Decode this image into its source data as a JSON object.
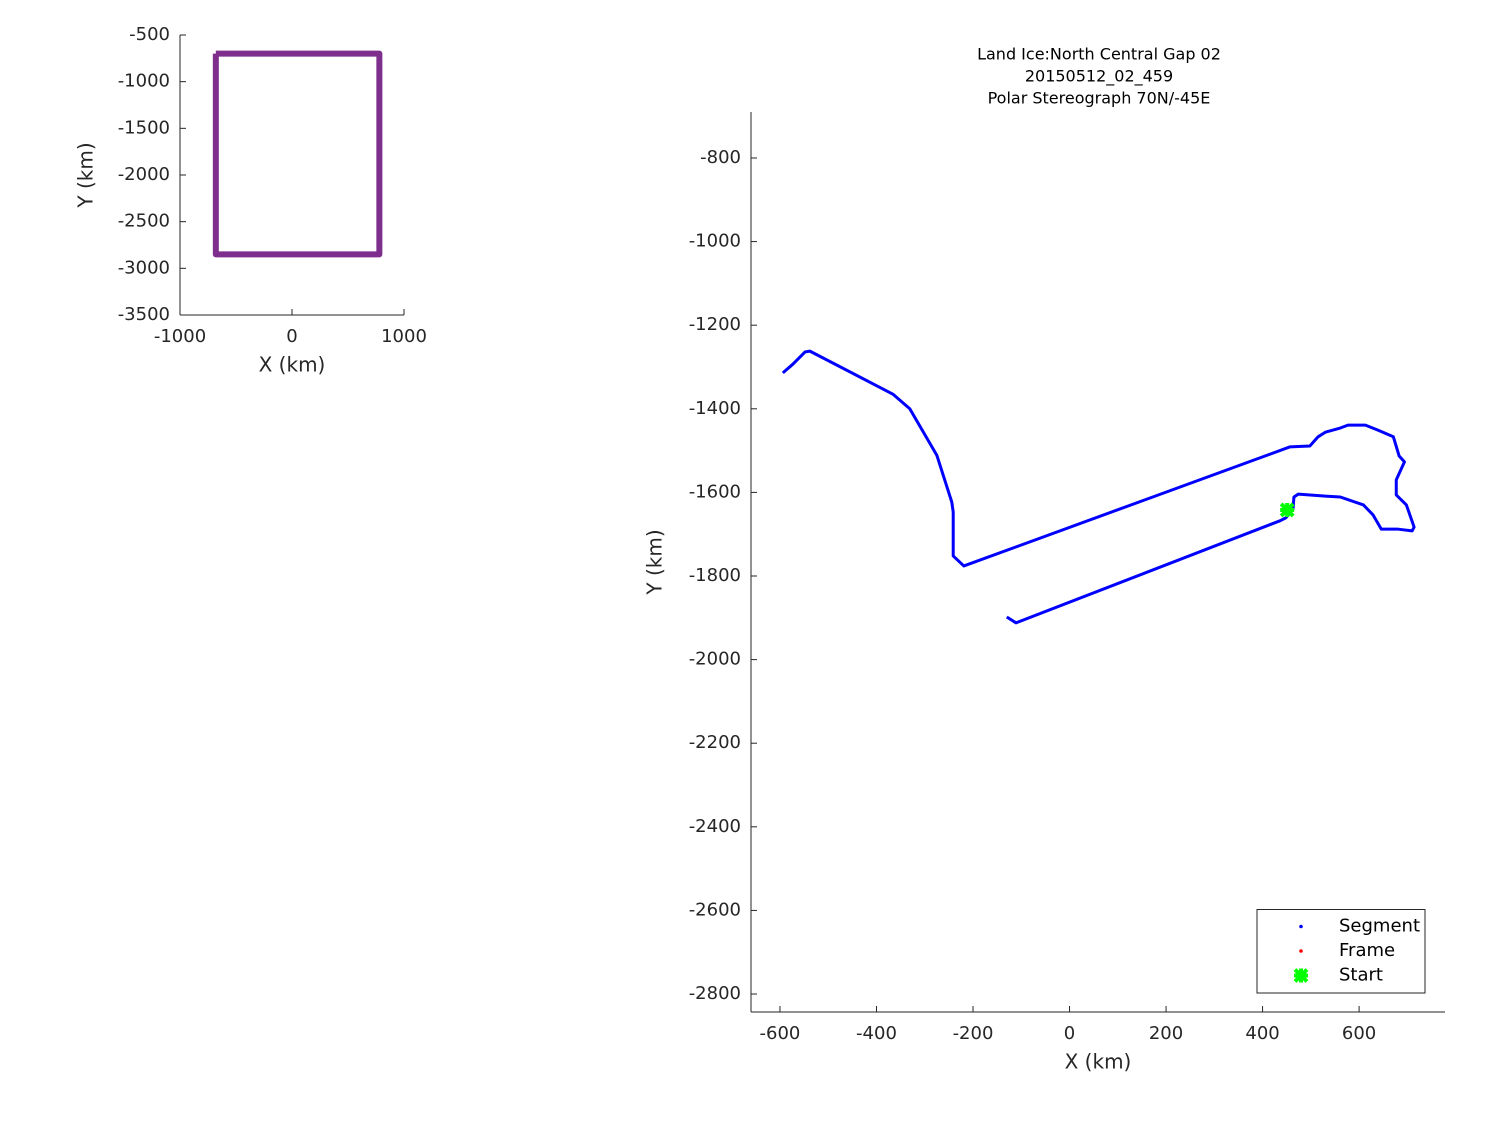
{
  "chart_data": [
    {
      "type": "line",
      "xlabel": "X (km)",
      "ylabel": "Y (km)",
      "xlim": [
        -1000,
        1000
      ],
      "ylim": [
        -3500,
        -500
      ],
      "xticks": [
        -1000,
        0,
        1000
      ],
      "yticks": [
        -3500,
        -3000,
        -2500,
        -2000,
        -1500,
        -1000,
        -500
      ],
      "series": [
        {
          "color": "#7e2f8e",
          "x": [
            -680,
            780,
            780,
            -680,
            -680
          ],
          "y": [
            -700,
            -700,
            -2850,
            -2850,
            -700
          ]
        }
      ]
    },
    {
      "type": "line",
      "title": [
        "Land Ice:North Central Gap 02",
        "20150512_02_459",
        "Polar Stereograph 70N/-45E"
      ],
      "xlabel": "X (km)",
      "ylabel": "Y (km)",
      "xlim": [
        -660,
        778
      ],
      "ylim": [
        -2843,
        -690
      ],
      "xticks": [
        -600,
        -400,
        -200,
        0,
        200,
        400,
        600
      ],
      "yticks": [
        -2800,
        -2600,
        -2400,
        -2200,
        -2000,
        -1800,
        -1600,
        -1400,
        -1200,
        -1000,
        -800
      ],
      "legend": "lower right",
      "series": [
        {
          "name": "Segment",
          "color": "#0000ff",
          "x": [
            -594,
            -573,
            -548,
            -538,
            -366,
            -331,
            -275,
            -244,
            -241,
            -241,
            -219,
            457,
            498,
            515,
            530,
            561,
            577,
            613,
            639,
            671,
            683,
            694,
            677,
            677,
            698,
            714,
            710,
            681,
            646,
            629,
            609,
            561,
            530,
            474,
            465,
            463,
            448,
            436,
            -111,
            -130
          ],
          "y": [
            -1314,
            -1293,
            -1264,
            -1262,
            -1365,
            -1400,
            -1511,
            -1623,
            -1647,
            -1752,
            -1776,
            -1491,
            -1489,
            -1467,
            -1456,
            -1446,
            -1439,
            -1439,
            -1451,
            -1467,
            -1513,
            -1527,
            -1570,
            -1606,
            -1630,
            -1683,
            -1692,
            -1688,
            -1688,
            -1654,
            -1630,
            -1611,
            -1609,
            -1604,
            -1611,
            -1640,
            -1661,
            -1668,
            -1912,
            -1898
          ]
        },
        {
          "name": "Frame",
          "color": "#ff0000",
          "x": [],
          "y": []
        },
        {
          "name": "Start",
          "color": "#00ff00",
          "x": [
            451
          ],
          "y": [
            -1642
          ]
        }
      ]
    }
  ]
}
